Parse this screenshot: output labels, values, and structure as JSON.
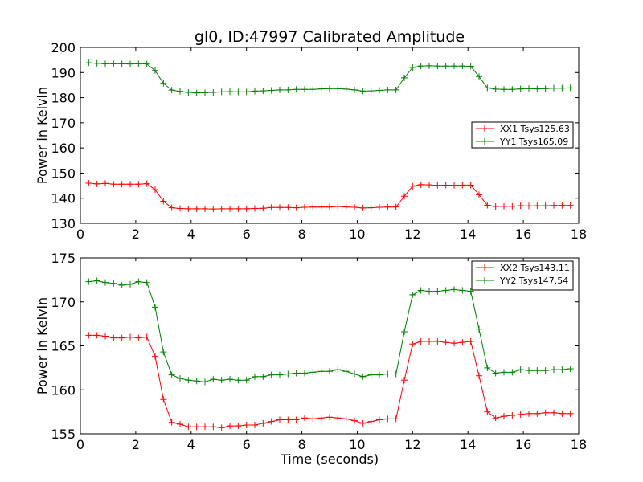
{
  "figure": {
    "title": "gl0, ID:47997 Calibrated Amplitude",
    "x_label": "Time (seconds)"
  },
  "chart_data": [
    {
      "type": "line",
      "title": "gl0, ID:47997 Calibrated Amplitude",
      "xlabel": "",
      "ylabel": "Power in Kelvin",
      "xlim": [
        0,
        18
      ],
      "ylim": [
        130,
        200
      ],
      "x_ticks": [
        "0",
        "2",
        "4",
        "6",
        "8",
        "10",
        "12",
        "14",
        "16",
        "18"
      ],
      "y_ticks": [
        "130",
        "140",
        "150",
        "160",
        "170",
        "180",
        "190",
        "200"
      ],
      "grid": false,
      "legend_position": "center-right",
      "x": [
        0.3,
        0.6,
        0.9,
        1.2,
        1.5,
        1.8,
        2.1,
        2.4,
        2.7,
        3.0,
        3.3,
        3.6,
        3.9,
        4.2,
        4.5,
        4.8,
        5.1,
        5.4,
        5.7,
        6.0,
        6.3,
        6.6,
        6.9,
        7.2,
        7.5,
        7.8,
        8.1,
        8.4,
        8.7,
        9.0,
        9.3,
        9.6,
        9.9,
        10.2,
        10.5,
        10.8,
        11.1,
        11.4,
        11.7,
        12.0,
        12.3,
        12.6,
        12.9,
        13.2,
        13.5,
        13.8,
        14.1,
        14.4,
        14.7,
        15.0,
        15.3,
        15.6,
        15.9,
        16.2,
        16.5,
        16.8,
        17.1,
        17.4,
        17.7
      ],
      "series": [
        {
          "name": "XX1 Tsys125.63",
          "color": "#ff0000",
          "values": [
            146.0,
            145.7,
            145.9,
            145.6,
            145.6,
            145.6,
            145.6,
            145.8,
            143.4,
            138.8,
            136.2,
            135.9,
            135.8,
            135.8,
            135.8,
            135.7,
            135.8,
            135.8,
            135.8,
            135.8,
            135.9,
            136.0,
            136.3,
            136.3,
            136.3,
            136.2,
            136.4,
            136.5,
            136.5,
            136.5,
            136.7,
            136.5,
            136.4,
            136.1,
            136.2,
            136.4,
            136.5,
            136.5,
            140.8,
            144.8,
            145.4,
            145.3,
            145.1,
            145.2,
            145.1,
            145.2,
            145.2,
            141.4,
            137.2,
            136.7,
            136.8,
            136.8,
            137.0,
            136.9,
            137.0,
            137.0,
            137.1,
            137.1,
            137.1
          ]
        },
        {
          "name": "YY1 Tsys165.09",
          "color": "#008000",
          "values": [
            193.9,
            193.7,
            193.5,
            193.5,
            193.5,
            193.4,
            193.5,
            193.4,
            190.8,
            185.7,
            183.0,
            182.5,
            182.1,
            181.9,
            182.0,
            182.1,
            182.3,
            182.4,
            182.3,
            182.3,
            182.6,
            182.7,
            182.9,
            183.1,
            183.1,
            183.3,
            183.3,
            183.3,
            183.5,
            183.6,
            183.6,
            183.4,
            183.1,
            182.6,
            182.7,
            182.9,
            183.1,
            183.1,
            187.9,
            192.0,
            192.6,
            192.7,
            192.6,
            192.6,
            192.6,
            192.6,
            192.5,
            188.4,
            183.9,
            183.4,
            183.3,
            183.3,
            183.5,
            183.6,
            183.5,
            183.6,
            183.8,
            183.8,
            183.9
          ]
        }
      ]
    },
    {
      "type": "line",
      "title": "",
      "xlabel": "Time (seconds)",
      "ylabel": "Power in Kelvin",
      "xlim": [
        0,
        18
      ],
      "ylim": [
        155,
        175
      ],
      "x_ticks": [
        "0",
        "2",
        "4",
        "6",
        "8",
        "10",
        "12",
        "14",
        "16",
        "18"
      ],
      "y_ticks": [
        "155",
        "160",
        "165",
        "170",
        "175"
      ],
      "grid": false,
      "legend_position": "top-right",
      "x": [
        0.3,
        0.6,
        0.9,
        1.2,
        1.5,
        1.8,
        2.1,
        2.4,
        2.7,
        3.0,
        3.3,
        3.6,
        3.9,
        4.2,
        4.5,
        4.8,
        5.1,
        5.4,
        5.7,
        6.0,
        6.3,
        6.6,
        6.9,
        7.2,
        7.5,
        7.8,
        8.1,
        8.4,
        8.7,
        9.0,
        9.3,
        9.6,
        9.9,
        10.2,
        10.5,
        10.8,
        11.1,
        11.4,
        11.7,
        12.0,
        12.3,
        12.6,
        12.9,
        13.2,
        13.5,
        13.8,
        14.1,
        14.4,
        14.7,
        15.0,
        15.3,
        15.6,
        15.9,
        16.2,
        16.5,
        16.8,
        17.1,
        17.4,
        17.7
      ],
      "series": [
        {
          "name": "XX2 Tsys143.11",
          "color": "#ff0000",
          "values": [
            166.2,
            166.2,
            166.1,
            165.9,
            165.9,
            166.0,
            165.9,
            166.0,
            163.8,
            158.9,
            156.3,
            156.1,
            155.8,
            155.8,
            155.8,
            155.8,
            155.7,
            155.9,
            155.9,
            156.0,
            156.0,
            156.2,
            156.4,
            156.6,
            156.6,
            156.6,
            156.8,
            156.7,
            156.8,
            156.9,
            156.8,
            156.7,
            156.5,
            156.2,
            156.4,
            156.6,
            156.7,
            156.7,
            161.1,
            165.2,
            165.5,
            165.5,
            165.5,
            165.4,
            165.3,
            165.4,
            165.5,
            161.6,
            157.5,
            156.8,
            157.0,
            157.1,
            157.2,
            157.3,
            157.3,
            157.4,
            157.4,
            157.3,
            157.3
          ]
        },
        {
          "name": "YY2 Tsys147.54",
          "color": "#008000",
          "values": [
            172.3,
            172.4,
            172.2,
            172.1,
            171.9,
            172.0,
            172.3,
            172.2,
            169.4,
            164.3,
            161.7,
            161.3,
            161.1,
            161.0,
            160.9,
            161.2,
            161.1,
            161.2,
            161.1,
            161.1,
            161.5,
            161.5,
            161.7,
            161.7,
            161.8,
            161.9,
            161.9,
            162.0,
            162.1,
            162.1,
            162.3,
            162.1,
            161.8,
            161.5,
            161.7,
            161.7,
            161.8,
            161.8,
            166.6,
            170.8,
            171.3,
            171.2,
            171.2,
            171.3,
            171.4,
            171.3,
            171.2,
            166.9,
            162.5,
            161.9,
            162.0,
            162.0,
            162.3,
            162.2,
            162.2,
            162.2,
            162.3,
            162.3,
            162.4
          ]
        }
      ]
    }
  ]
}
